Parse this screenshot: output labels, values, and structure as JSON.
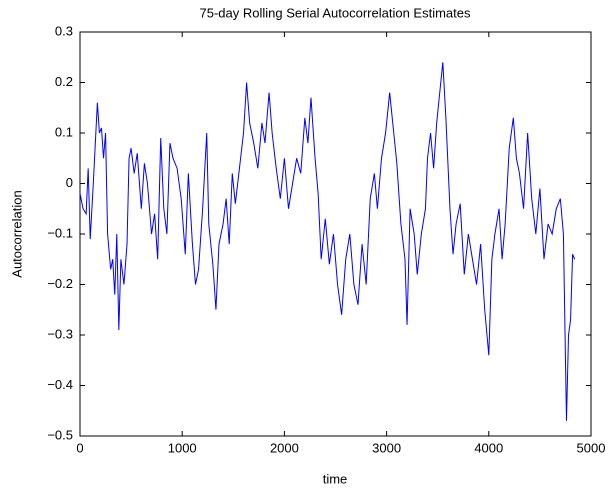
{
  "chart_data": {
    "type": "line",
    "title": "75-day Rolling Serial Autocorrelation Estimates",
    "xlabel": "time",
    "ylabel": "Autocorrelation",
    "color": "#0000ff",
    "xlim": [
      0,
      5000
    ],
    "xticks": [
      0,
      1000,
      2000,
      3000,
      4000,
      5000
    ],
    "ylim": [
      -0.5,
      0.3
    ],
    "yticks": [
      {
        "value": -0.5,
        "label": "−0.5"
      },
      {
        "value": -0.4,
        "label": "−0.4"
      },
      {
        "value": -0.3,
        "label": "−0.3"
      },
      {
        "value": -0.2,
        "label": "−0.2"
      },
      {
        "value": -0.1,
        "label": "−0.1"
      },
      0,
      0.1,
      0.2,
      0.3
    ],
    "x": [
      0,
      30,
      60,
      80,
      100,
      130,
      150,
      170,
      190,
      210,
      230,
      250,
      270,
      300,
      320,
      340,
      360,
      380,
      400,
      430,
      460,
      480,
      500,
      530,
      560,
      600,
      630,
      660,
      700,
      730,
      760,
      790,
      820,
      850,
      880,
      910,
      950,
      990,
      1030,
      1060,
      1100,
      1130,
      1160,
      1200,
      1240,
      1260,
      1300,
      1330,
      1360,
      1400,
      1430,
      1460,
      1490,
      1520,
      1560,
      1600,
      1630,
      1660,
      1700,
      1740,
      1780,
      1810,
      1850,
      1880,
      1920,
      1960,
      2000,
      2040,
      2080,
      2120,
      2160,
      2200,
      2230,
      2260,
      2300,
      2330,
      2360,
      2400,
      2440,
      2480,
      2520,
      2560,
      2600,
      2640,
      2680,
      2720,
      2760,
      2800,
      2840,
      2880,
      2910,
      2950,
      2990,
      3030,
      3070,
      3100,
      3140,
      3180,
      3200,
      3230,
      3270,
      3300,
      3340,
      3380,
      3400,
      3430,
      3460,
      3490,
      3520,
      3550,
      3580,
      3620,
      3650,
      3680,
      3720,
      3760,
      3800,
      3840,
      3880,
      3920,
      3960,
      4000,
      4030,
      4060,
      4100,
      4130,
      4160,
      4200,
      4240,
      4270,
      4300,
      4340,
      4380,
      4420,
      4460,
      4500,
      4540,
      4580,
      4620,
      4660,
      4700,
      4730,
      4760,
      4780,
      4800,
      4820,
      4840
    ],
    "values": [
      -0.02,
      -0.05,
      -0.06,
      0.03,
      -0.11,
      0.0,
      0.08,
      0.16,
      0.1,
      0.11,
      0.05,
      0.1,
      -0.1,
      -0.17,
      -0.15,
      -0.22,
      -0.1,
      -0.29,
      -0.15,
      -0.2,
      -0.12,
      0.05,
      0.07,
      0.02,
      0.06,
      -0.05,
      0.04,
      0.0,
      -0.1,
      -0.06,
      -0.15,
      0.09,
      -0.05,
      -0.1,
      0.08,
      0.05,
      0.03,
      -0.03,
      -0.14,
      0.02,
      -0.12,
      -0.2,
      -0.17,
      -0.05,
      0.1,
      -0.08,
      -0.16,
      -0.25,
      -0.12,
      -0.08,
      -0.03,
      -0.12,
      0.02,
      -0.04,
      0.03,
      0.1,
      0.2,
      0.12,
      0.08,
      0.03,
      0.12,
      0.08,
      0.18,
      0.1,
      0.03,
      -0.03,
      0.05,
      -0.05,
      0.0,
      0.05,
      0.02,
      0.13,
      0.08,
      0.17,
      0.05,
      -0.02,
      -0.15,
      -0.07,
      -0.16,
      -0.1,
      -0.2,
      -0.26,
      -0.15,
      -0.1,
      -0.2,
      -0.24,
      -0.12,
      -0.2,
      -0.03,
      0.02,
      -0.05,
      0.05,
      0.1,
      0.18,
      0.1,
      0.04,
      -0.08,
      -0.15,
      -0.28,
      -0.05,
      -0.1,
      -0.18,
      -0.1,
      -0.05,
      0.05,
      0.1,
      0.03,
      0.12,
      0.18,
      0.24,
      0.13,
      -0.05,
      -0.14,
      -0.08,
      -0.04,
      -0.18,
      -0.1,
      -0.15,
      -0.2,
      -0.12,
      -0.25,
      -0.34,
      -0.15,
      -0.1,
      -0.05,
      -0.15,
      -0.08,
      0.07,
      0.13,
      0.05,
      0.02,
      -0.05,
      0.1,
      -0.03,
      -0.1,
      -0.01,
      -0.15,
      -0.08,
      -0.1,
      -0.05,
      -0.03,
      -0.1,
      -0.47,
      -0.3,
      -0.27,
      -0.14,
      -0.15
    ]
  }
}
